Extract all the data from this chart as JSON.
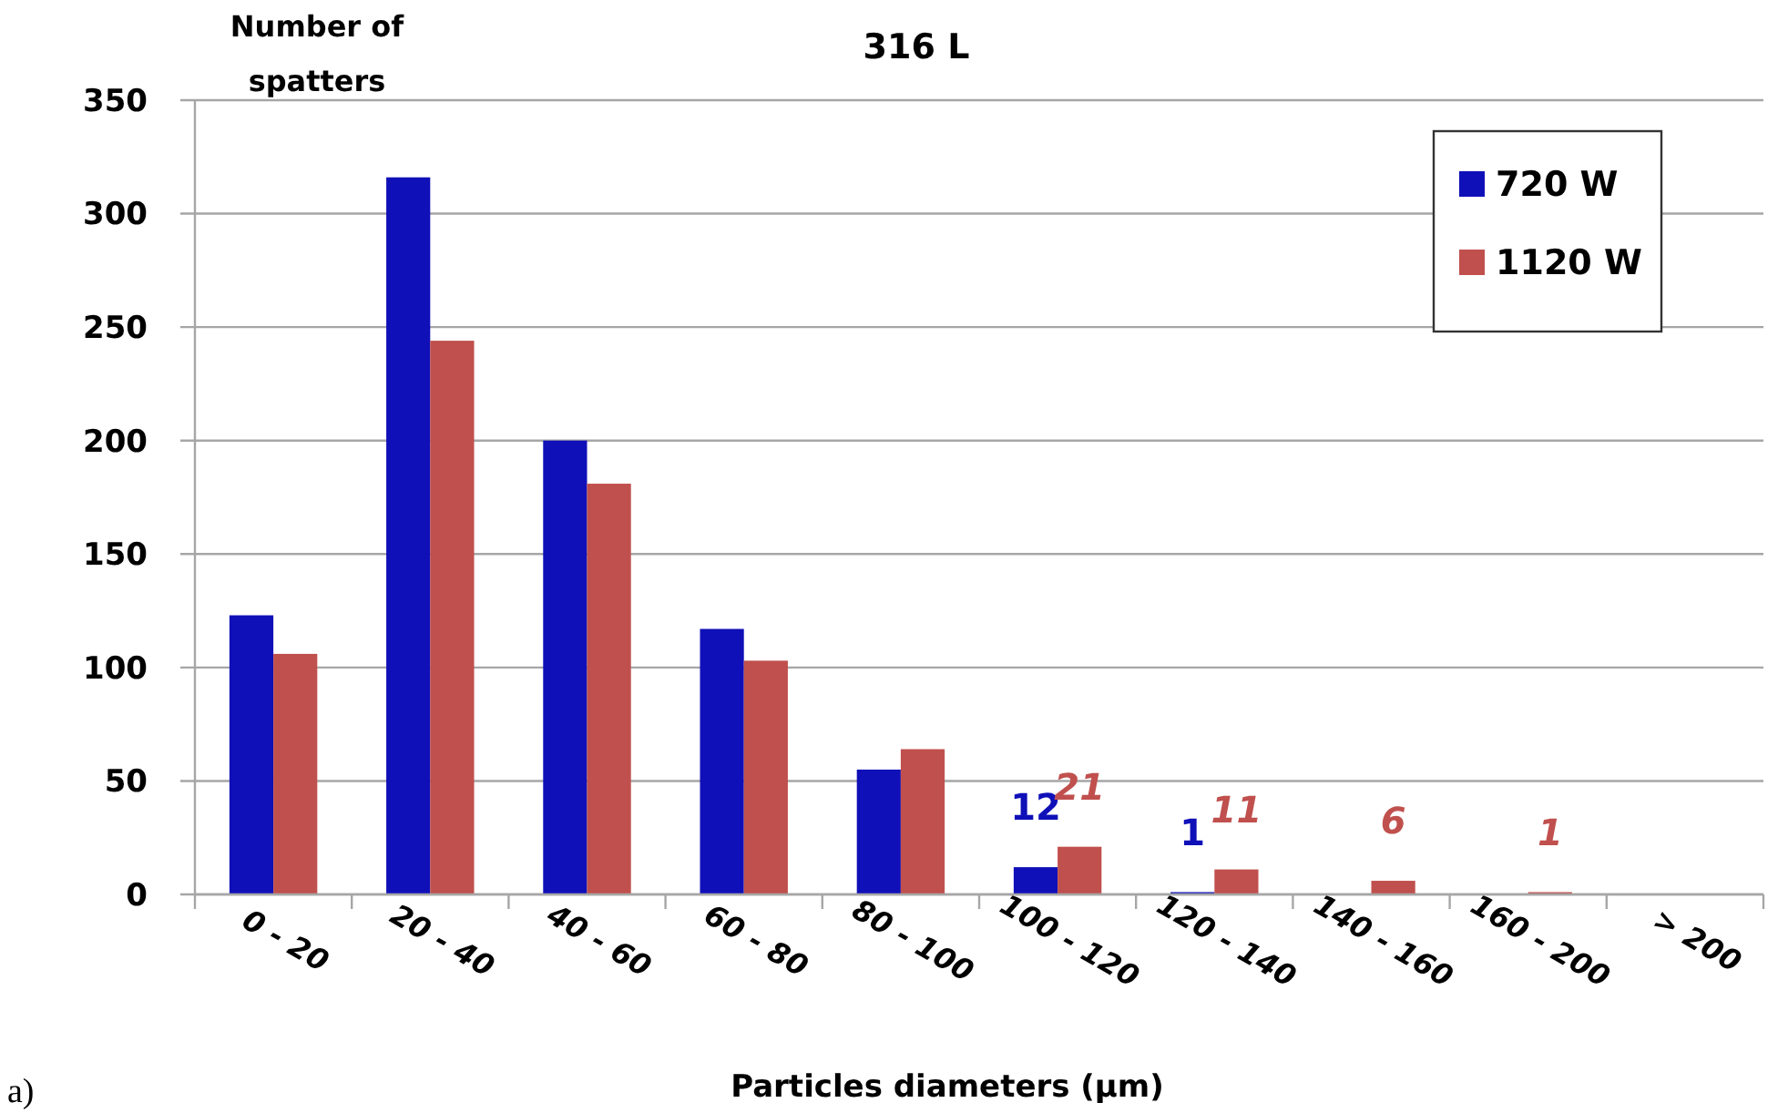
{
  "chart_data": {
    "type": "bar",
    "title": "316 L",
    "xlabel": "Particles diameters (µm)",
    "ylabel": "Number of\nspatters",
    "annotations": [
      "a)"
    ],
    "categories": [
      "0 - 20",
      "20 - 40",
      "40 - 60",
      "60 - 80",
      "80 - 100",
      "100 - 120",
      "120 - 140",
      "140 - 160",
      "160 - 200",
      "> 200"
    ],
    "series": [
      {
        "name": "720 W",
        "color": "#1010b8",
        "values": [
          123,
          316,
          200,
          117,
          55,
          12,
          1,
          0,
          0,
          0
        ],
        "value_labels": [
          null,
          null,
          null,
          null,
          null,
          "12",
          "1",
          null,
          null,
          null
        ]
      },
      {
        "name": "1120 W",
        "color": "#c0504d",
        "values": [
          106,
          244,
          181,
          103,
          64,
          21,
          11,
          6,
          1,
          0
        ],
        "value_labels": [
          null,
          null,
          null,
          null,
          null,
          "21",
          "11",
          "6",
          "1",
          null
        ]
      }
    ],
    "ylim": [
      0,
      350
    ],
    "yticks": [
      0,
      50,
      100,
      150,
      200,
      250,
      300,
      350
    ],
    "grid": "y",
    "legend": "top right"
  }
}
